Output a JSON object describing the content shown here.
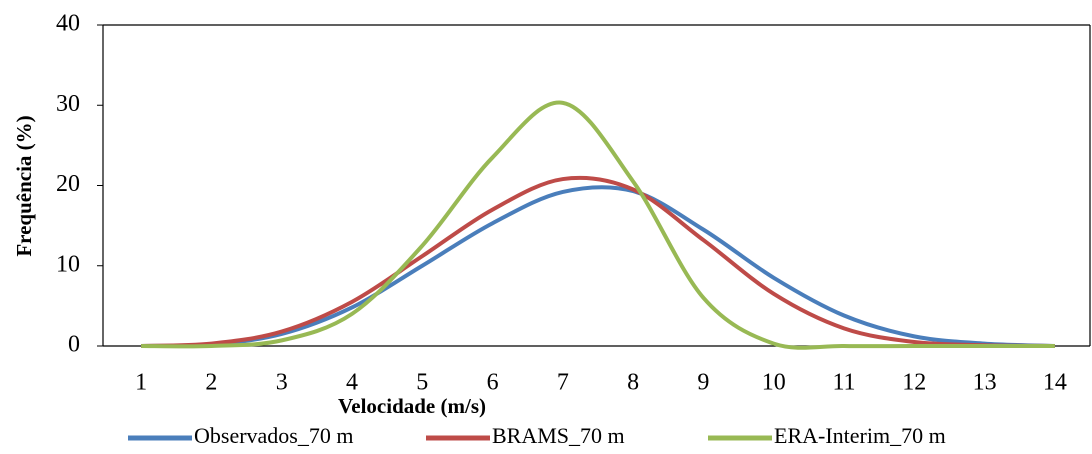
{
  "chart_data": {
    "type": "line",
    "x_label": "Velocidade (m/s)",
    "y_label": "Frequência (%)",
    "categories": [
      "1",
      "2",
      "3",
      "4",
      "5",
      "6",
      "7",
      "8",
      "9",
      "10",
      "11",
      "12",
      "13",
      "14"
    ],
    "series": [
      {
        "name": "Observados_70 m",
        "color": "#4a7ebb",
        "values": [
          0,
          0.2,
          1.5,
          4.8,
          10,
          15.3,
          19.2,
          19.3,
          14.5,
          8.5,
          3.8,
          1.2,
          0.3,
          0
        ]
      },
      {
        "name": "BRAMS_70 m",
        "color": "#be4b48",
        "values": [
          0,
          0.3,
          1.8,
          5.5,
          11.2,
          17,
          20.8,
          19.5,
          13.2,
          6.5,
          2.2,
          0.5,
          0.1,
          0
        ]
      },
      {
        "name": "ERA-Interim_70 m",
        "color": "#98b954",
        "values": [
          0,
          0,
          0.7,
          4,
          12.5,
          23.5,
          30.3,
          20.5,
          6,
          0.3,
          0,
          0,
          0,
          0
        ]
      }
    ],
    "ylim": [
      0,
      40
    ],
    "yticks": [
      0,
      10,
      20,
      30,
      40
    ],
    "grid": false,
    "legend": "bottom"
  }
}
